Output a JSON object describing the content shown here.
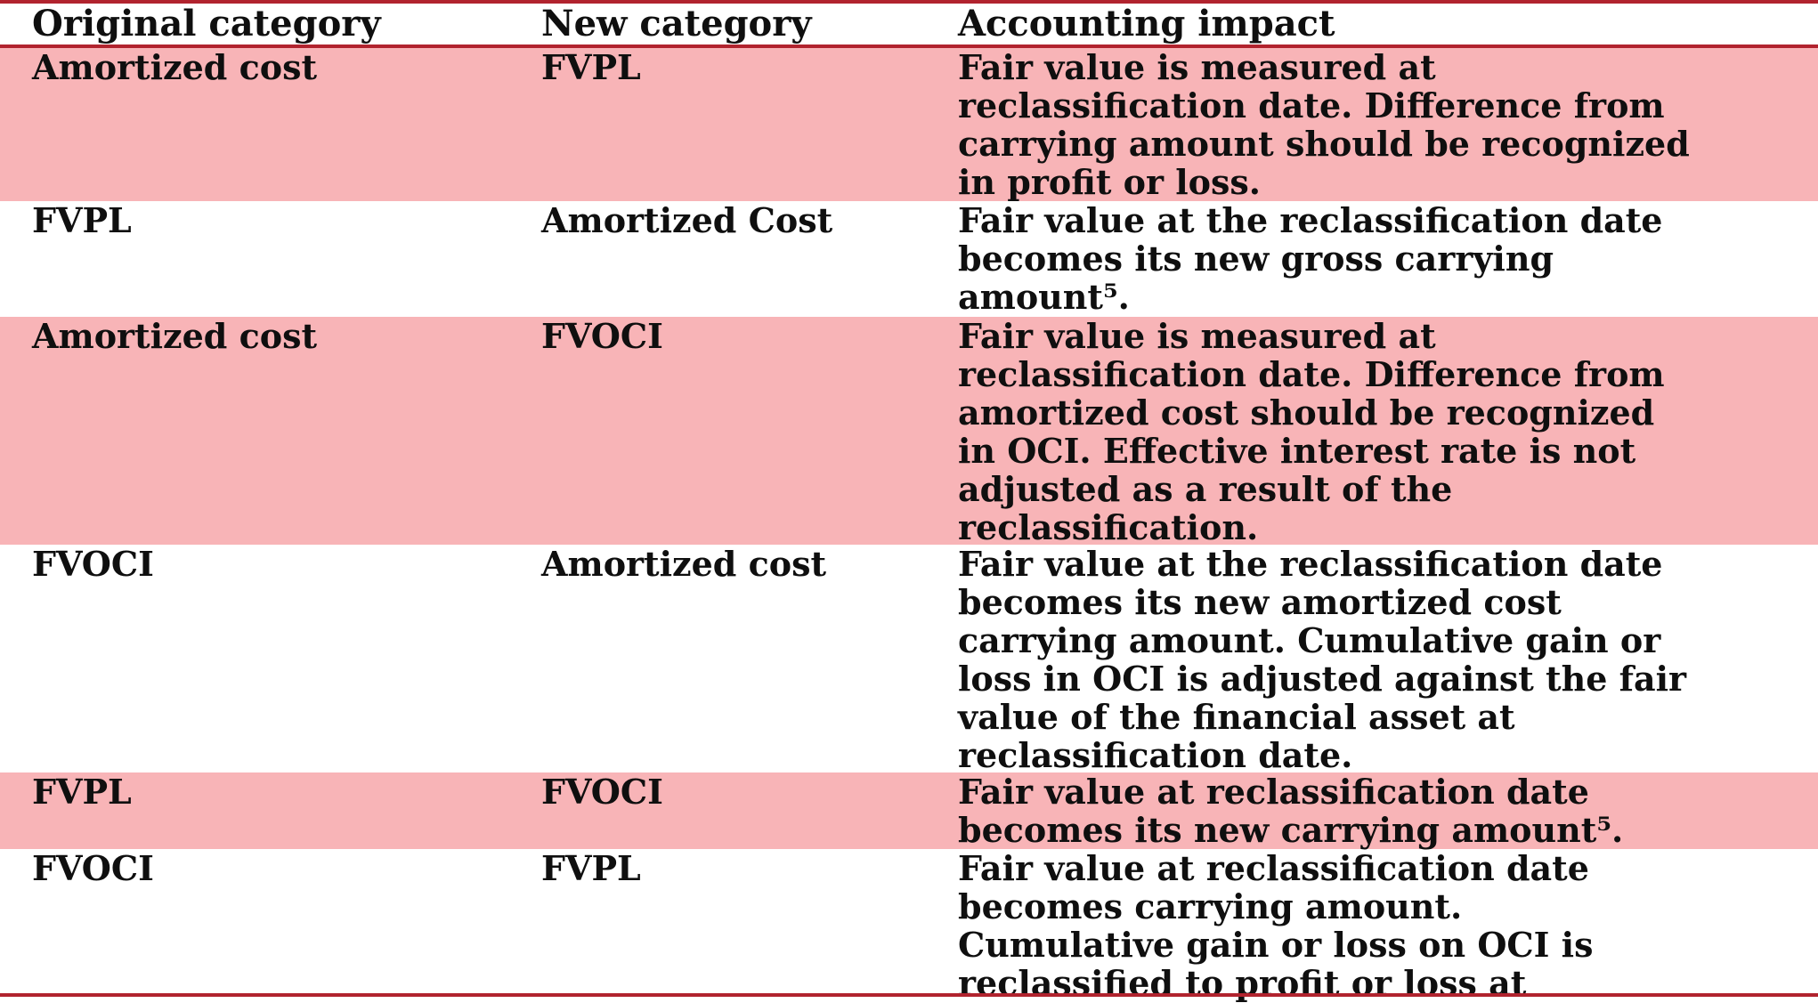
{
  "table": {
    "headers": [
      "Original category",
      "New category",
      "Accounting impact"
    ],
    "rows": [
      {
        "original": "Amortized cost",
        "new": "FVPL",
        "impact": "Fair value is measured at\nreclassification date. Difference from\ncarrying amount should be recognized\nin profit or loss."
      },
      {
        "original": "FVPL",
        "new": "Amortized Cost",
        "impact": "Fair value at the reclassification date\nbecomes its new gross carrying\namount⁵."
      },
      {
        "original": "Amortized cost",
        "new": "FVOCI",
        "impact": "Fair value is measured at\nreclassification date. Difference from\namortized cost should be recognized\nin OCI. Effective interest rate is not\nadjusted as a result of the\nreclassification."
      },
      {
        "original": "FVOCI",
        "new": "Amortized cost",
        "impact": "Fair value at the reclassification date\nbecomes its new amortized cost\ncarrying amount. Cumulative gain or\nloss in OCI is adjusted against the fair\nvalue of the financial asset at\nreclassification date."
      },
      {
        "original": "FVPL",
        "new": "FVOCI",
        "impact": "Fair value at reclassification date\nbecomes its new carrying amount⁵."
      },
      {
        "original": "FVOCI",
        "new": "FVPL",
        "impact": "Fair value at reclassification date\nbecomes carrying amount.\nCumulative gain or loss on OCI is\nreclassified to profit or loss at"
      }
    ]
  },
  "colors": {
    "rule": "#b1232e",
    "shade": "#f8b4b7",
    "text": "#0f0f0f"
  }
}
